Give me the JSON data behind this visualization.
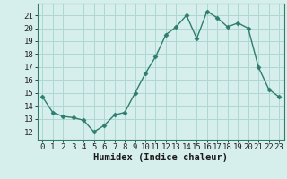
{
  "x": [
    0,
    1,
    2,
    3,
    4,
    5,
    6,
    7,
    8,
    9,
    10,
    11,
    12,
    13,
    14,
    15,
    16,
    17,
    18,
    19,
    20,
    21,
    22,
    23
  ],
  "y": [
    14.7,
    13.5,
    13.2,
    13.1,
    12.9,
    12.0,
    12.5,
    13.3,
    13.5,
    15.0,
    16.5,
    17.8,
    19.5,
    20.1,
    21.0,
    19.2,
    21.3,
    20.8,
    20.1,
    20.4,
    20.0,
    17.0,
    15.3,
    14.7
  ],
  "line_color": "#2e7d6e",
  "marker": "D",
  "marker_size": 2.5,
  "bg_color": "#d6efec",
  "grid_color": "#aed8d4",
  "xlabel": "Humidex (Indice chaleur)",
  "ylabel_ticks": [
    12,
    13,
    14,
    15,
    16,
    17,
    18,
    19,
    20,
    21
  ],
  "ylim": [
    11.4,
    21.9
  ],
  "xlim": [
    -0.5,
    23.5
  ],
  "tick_fontsize": 6.5,
  "label_fontsize": 7.5,
  "spine_color": "#2e7d6e"
}
